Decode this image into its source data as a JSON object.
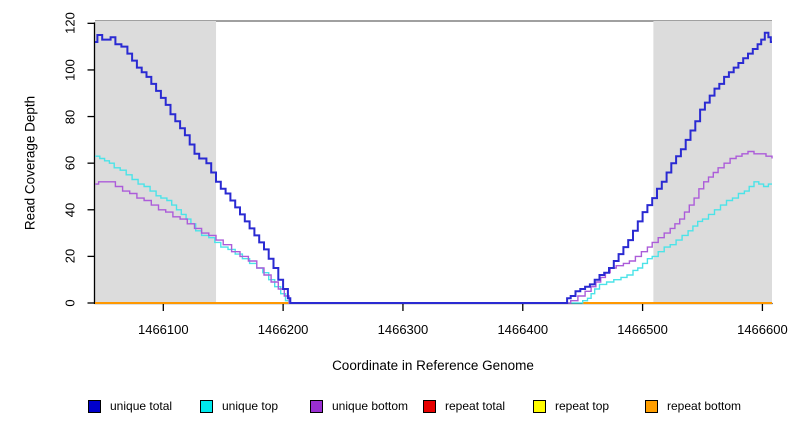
{
  "figure": {
    "x_axis_label": "Coordinate in Reference Genome",
    "y_axis_label": "Read Coverage Depth"
  },
  "chart_data": {
    "type": "line",
    "subtype": "step",
    "title": "",
    "xlabel": "Coordinate in Reference Genome",
    "ylabel": "Read Coverage Depth",
    "xlim": [
      1466043,
      1466608
    ],
    "ylim": [
      0,
      121
    ],
    "grid": false,
    "legend_position": "bottom",
    "background": "#ffffff",
    "x_ticks": [
      {
        "value": 1466100,
        "label": "1466100"
      },
      {
        "value": 1466200,
        "label": "1466200"
      },
      {
        "value": 1466300,
        "label": "1466300"
      },
      {
        "value": 1466400,
        "label": "1466400"
      },
      {
        "value": 1466500,
        "label": "1466500"
      },
      {
        "value": 1466600,
        "label": "1466600"
      }
    ],
    "y_ticks": [
      {
        "value": 0,
        "label": "0"
      },
      {
        "value": 20,
        "label": "20"
      },
      {
        "value": 40,
        "label": "40"
      },
      {
        "value": 60,
        "label": "60"
      },
      {
        "value": 80,
        "label": "80"
      },
      {
        "value": 100,
        "label": "100"
      },
      {
        "value": 120,
        "label": "120"
      }
    ],
    "shaded_regions": [
      {
        "name": "repeat-region-left",
        "x0": 1466043,
        "x1": 1466144,
        "color": "#DCDCDC"
      },
      {
        "name": "repeat-region-right",
        "x0": 1466509,
        "x1": 1466608,
        "color": "#DCDCDC"
      }
    ],
    "reference_line": {
      "y": 121,
      "color": "#808080",
      "width": 1.6
    },
    "series": [
      {
        "name": "repeat total",
        "color": "#E60000",
        "legend_color": "#E60000",
        "width": 2,
        "segments": [
          [
            [
              1466043,
              0
            ],
            [
              1466206,
              0
            ]
          ],
          [
            [
              1466450,
              0
            ],
            [
              1466608,
              0
            ]
          ]
        ]
      },
      {
        "name": "repeat top",
        "color": "#FFFC00",
        "legend_color": "#FFFC00",
        "width": 2,
        "segments": [
          [
            [
              1466043,
              0
            ],
            [
              1466206,
              0
            ]
          ],
          [
            [
              1466450,
              0
            ],
            [
              1466608,
              0
            ]
          ]
        ]
      },
      {
        "name": "repeat bottom",
        "color": "#FF9800",
        "legend_color": "#FF9E00",
        "width": 2,
        "segments": [
          [
            [
              1466043,
              0
            ],
            [
              1466206,
              0
            ]
          ],
          [
            [
              1466450,
              0
            ],
            [
              1466608,
              0
            ]
          ]
        ]
      },
      {
        "name": "unique top",
        "color": "#4BE3E8",
        "legend_color": "#00E9ED",
        "width": 1.4,
        "segments": [
          [
            [
              1466043,
              63
            ],
            [
              1466047,
              62
            ],
            [
              1466051,
              61
            ],
            [
              1466055,
              60
            ],
            [
              1466059,
              58
            ],
            [
              1466064,
              57
            ],
            [
              1466069,
              55
            ],
            [
              1466074,
              53
            ],
            [
              1466079,
              51
            ],
            [
              1466084,
              50
            ],
            [
              1466089,
              48
            ],
            [
              1466094,
              46
            ],
            [
              1466098,
              45
            ],
            [
              1466103,
              44
            ],
            [
              1466107,
              42
            ],
            [
              1466111,
              40
            ],
            [
              1466115,
              38
            ],
            [
              1466119,
              36
            ],
            [
              1466123,
              34
            ],
            [
              1466127,
              31
            ],
            [
              1466132,
              29
            ],
            [
              1466138,
              28
            ],
            [
              1466143,
              26
            ],
            [
              1466148,
              24
            ],
            [
              1466154,
              23
            ],
            [
              1466160,
              21
            ],
            [
              1466166,
              19
            ],
            [
              1466172,
              17
            ],
            [
              1466178,
              15
            ],
            [
              1466183,
              13
            ],
            [
              1466188,
              10
            ],
            [
              1466193,
              7
            ],
            [
              1466198,
              4
            ],
            [
              1466202,
              1
            ],
            [
              1466205,
              0
            ],
            [
              1466450,
              1
            ],
            [
              1466454,
              2
            ],
            [
              1466457,
              4
            ],
            [
              1466460,
              6
            ],
            [
              1466464,
              8
            ],
            [
              1466470,
              9
            ],
            [
              1466476,
              10
            ],
            [
              1466482,
              11
            ],
            [
              1466487,
              12
            ],
            [
              1466492,
              14
            ],
            [
              1466496,
              15
            ],
            [
              1466500,
              17
            ],
            [
              1466504,
              19
            ],
            [
              1466508,
              20
            ],
            [
              1466513,
              22
            ],
            [
              1466518,
              24
            ],
            [
              1466523,
              25
            ],
            [
              1466528,
              27
            ],
            [
              1466533,
              29
            ],
            [
              1466538,
              31
            ],
            [
              1466542,
              33
            ],
            [
              1466546,
              35
            ],
            [
              1466550,
              36
            ],
            [
              1466555,
              38
            ],
            [
              1466560,
              40
            ],
            [
              1466565,
              42
            ],
            [
              1466570,
              44
            ],
            [
              1466575,
              45
            ],
            [
              1466580,
              47
            ],
            [
              1466585,
              48
            ],
            [
              1466589,
              50
            ],
            [
              1466593,
              52
            ],
            [
              1466597,
              51
            ],
            [
              1466601,
              50
            ],
            [
              1466605,
              51
            ],
            [
              1466608,
              51
            ]
          ]
        ]
      },
      {
        "name": "unique bottom",
        "color": "#AC5CD9",
        "legend_color": "#9A2FD2",
        "width": 1.4,
        "segments": [
          [
            [
              1466043,
              51
            ],
            [
              1466046,
              52
            ],
            [
              1466054,
              52
            ],
            [
              1466060,
              50
            ],
            [
              1466066,
              48
            ],
            [
              1466072,
              47
            ],
            [
              1466078,
              45
            ],
            [
              1466084,
              44
            ],
            [
              1466090,
              42
            ],
            [
              1466096,
              40
            ],
            [
              1466102,
              39
            ],
            [
              1466108,
              37
            ],
            [
              1466114,
              36
            ],
            [
              1466120,
              34
            ],
            [
              1466126,
              32
            ],
            [
              1466132,
              30
            ],
            [
              1466138,
              29
            ],
            [
              1466144,
              27
            ],
            [
              1466150,
              25
            ],
            [
              1466157,
              22
            ],
            [
              1466164,
              20
            ],
            [
              1466171,
              18
            ],
            [
              1466178,
              15
            ],
            [
              1466184,
              12
            ],
            [
              1466190,
              9
            ],
            [
              1466196,
              6
            ],
            [
              1466201,
              3
            ],
            [
              1466205,
              0
            ],
            [
              1466440,
              1
            ],
            [
              1466446,
              3
            ],
            [
              1466452,
              5
            ],
            [
              1466457,
              7
            ],
            [
              1466461,
              9
            ],
            [
              1466465,
              11
            ],
            [
              1466469,
              13
            ],
            [
              1466473,
              15
            ],
            [
              1466478,
              16
            ],
            [
              1466484,
              17
            ],
            [
              1466489,
              18
            ],
            [
              1466494,
              20
            ],
            [
              1466499,
              22
            ],
            [
              1466504,
              24
            ],
            [
              1466508,
              26
            ],
            [
              1466513,
              28
            ],
            [
              1466518,
              30
            ],
            [
              1466523,
              32
            ],
            [
              1466527,
              34
            ],
            [
              1466531,
              36
            ],
            [
              1466535,
              39
            ],
            [
              1466539,
              42
            ],
            [
              1466543,
              45
            ],
            [
              1466547,
              49
            ],
            [
              1466551,
              52
            ],
            [
              1466555,
              54
            ],
            [
              1466559,
              56
            ],
            [
              1466563,
              58
            ],
            [
              1466568,
              60
            ],
            [
              1466573,
              62
            ],
            [
              1466578,
              63
            ],
            [
              1466583,
              64
            ],
            [
              1466588,
              65
            ],
            [
              1466593,
              64
            ],
            [
              1466598,
              64
            ],
            [
              1466603,
              63
            ],
            [
              1466608,
              62
            ]
          ]
        ]
      },
      {
        "name": "unique total",
        "color": "#2A2AD2",
        "legend_color": "#0000CB",
        "width": 2,
        "segments": [
          [
            [
              1466043,
              112
            ],
            [
              1466045,
              115
            ],
            [
              1466049,
              113
            ],
            [
              1466056,
              114
            ],
            [
              1466060,
              111
            ],
            [
              1466065,
              110
            ],
            [
              1466070,
              107
            ],
            [
              1466074,
              104
            ],
            [
              1466078,
              101
            ],
            [
              1466082,
              99
            ],
            [
              1466086,
              97
            ],
            [
              1466090,
              94
            ],
            [
              1466094,
              91
            ],
            [
              1466098,
              88
            ],
            [
              1466102,
              85
            ],
            [
              1466106,
              81
            ],
            [
              1466110,
              78
            ],
            [
              1466114,
              75
            ],
            [
              1466118,
              72
            ],
            [
              1466122,
              68
            ],
            [
              1466126,
              64
            ],
            [
              1466130,
              62
            ],
            [
              1466136,
              60
            ],
            [
              1466140,
              56
            ],
            [
              1466144,
              52
            ],
            [
              1466148,
              49
            ],
            [
              1466152,
              47
            ],
            [
              1466156,
              44
            ],
            [
              1466160,
              41
            ],
            [
              1466164,
              38
            ],
            [
              1466168,
              35
            ],
            [
              1466172,
              32
            ],
            [
              1466176,
              29
            ],
            [
              1466180,
              26
            ],
            [
              1466184,
              23
            ],
            [
              1466188,
              19
            ],
            [
              1466192,
              15
            ],
            [
              1466196,
              10
            ],
            [
              1466200,
              6
            ],
            [
              1466204,
              2
            ],
            [
              1466206,
              0
            ],
            [
              1466437,
              2
            ],
            [
              1466440,
              3
            ],
            [
              1466444,
              5
            ],
            [
              1466448,
              6
            ],
            [
              1466452,
              7
            ],
            [
              1466456,
              8
            ],
            [
              1466460,
              10
            ],
            [
              1466464,
              12
            ],
            [
              1466468,
              13
            ],
            [
              1466472,
              15
            ],
            [
              1466476,
              18
            ],
            [
              1466480,
              21
            ],
            [
              1466484,
              24
            ],
            [
              1466488,
              27
            ],
            [
              1466492,
              31
            ],
            [
              1466496,
              35
            ],
            [
              1466500,
              39
            ],
            [
              1466504,
              42
            ],
            [
              1466508,
              45
            ],
            [
              1466512,
              49
            ],
            [
              1466516,
              52
            ],
            [
              1466520,
              56
            ],
            [
              1466524,
              60
            ],
            [
              1466528,
              63
            ],
            [
              1466532,
              66
            ],
            [
              1466536,
              70
            ],
            [
              1466540,
              74
            ],
            [
              1466544,
              78
            ],
            [
              1466548,
              83
            ],
            [
              1466552,
              86
            ],
            [
              1466556,
              89
            ],
            [
              1466560,
              92
            ],
            [
              1466564,
              94
            ],
            [
              1466568,
              97
            ],
            [
              1466572,
              99
            ],
            [
              1466576,
              101
            ],
            [
              1466580,
              103
            ],
            [
              1466584,
              105
            ],
            [
              1466588,
              107
            ],
            [
              1466592,
              109
            ],
            [
              1466596,
              111
            ],
            [
              1466599,
              113
            ],
            [
              1466602,
              116
            ],
            [
              1466605,
              114
            ],
            [
              1466607,
              112
            ],
            [
              1466608,
              112
            ]
          ]
        ]
      }
    ],
    "legend": [
      {
        "label": "unique total",
        "color": "#0000CB"
      },
      {
        "label": "unique top",
        "color": "#00E9ED"
      },
      {
        "label": "unique bottom",
        "color": "#9A2FD2"
      },
      {
        "label": "repeat total",
        "color": "#E60000"
      },
      {
        "label": "repeat top",
        "color": "#FFFC00"
      },
      {
        "label": "repeat bottom",
        "color": "#FF9E00"
      }
    ]
  }
}
